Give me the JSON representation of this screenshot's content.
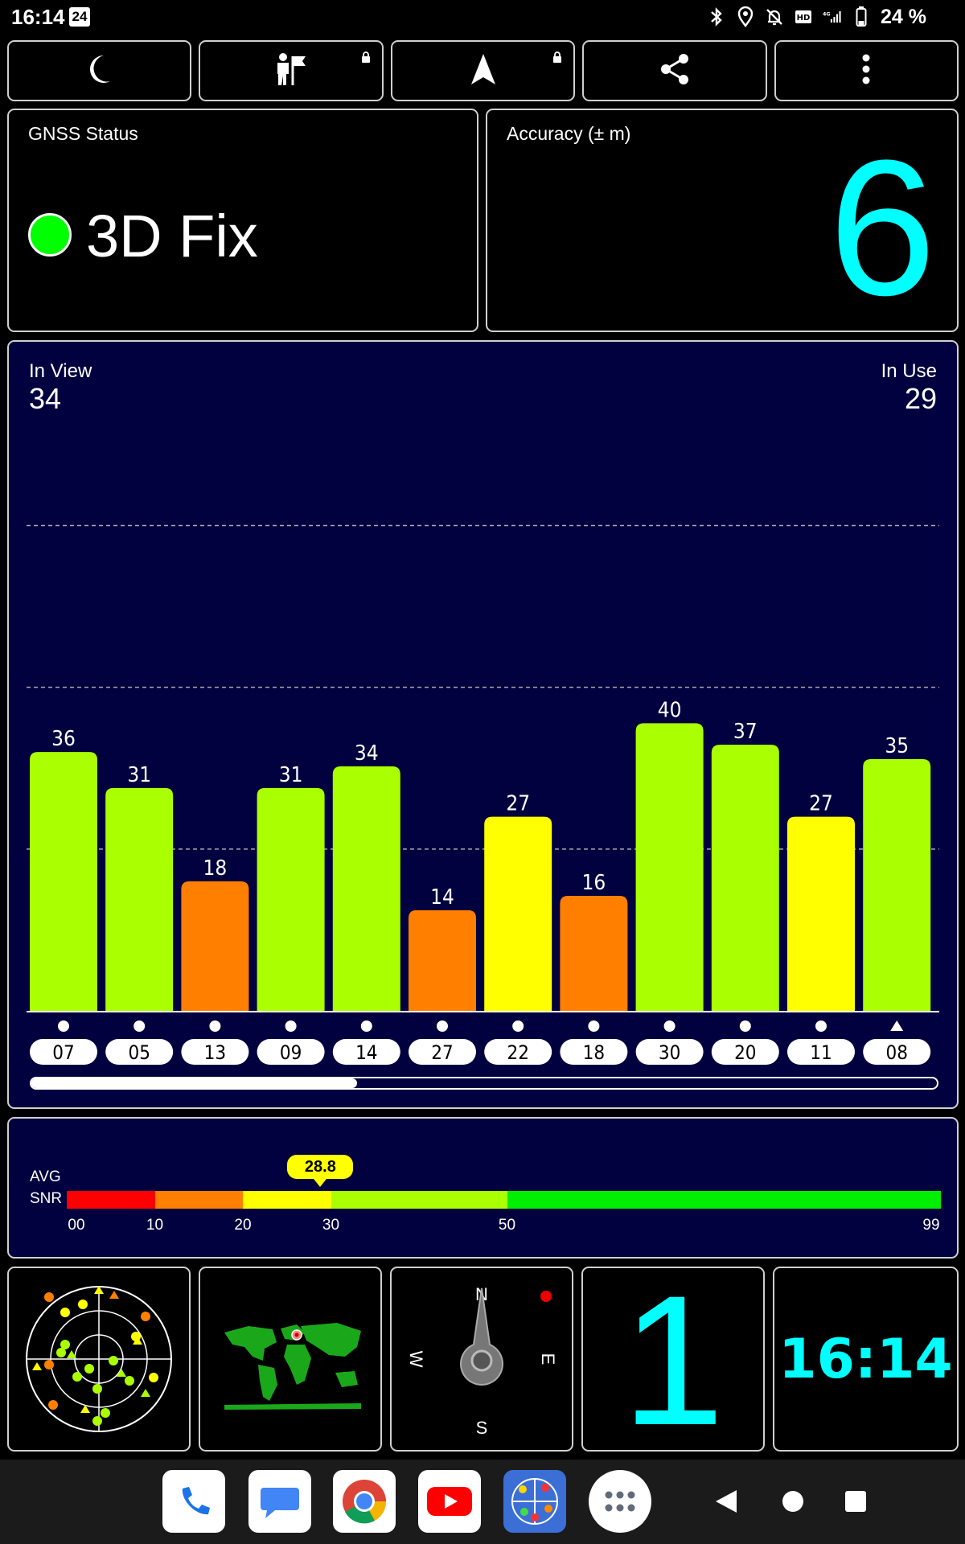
{
  "status_bar": {
    "time": "16:14",
    "date_badge": "24",
    "battery": "24 %",
    "icons": [
      "bluetooth-icon",
      "location-icon",
      "do-not-disturb-icon",
      "hd-icon",
      "4g-signal-icon",
      "battery-icon"
    ]
  },
  "toolbar": {
    "buttons": [
      "night-mode-icon",
      "map-marker-person-icon",
      "navigation-arrow-icon",
      "share-icon",
      "more-vert-icon"
    ]
  },
  "gnss_status": {
    "title": "GNSS Status",
    "value": "3D Fix",
    "indicator_color": "#00ff00"
  },
  "accuracy": {
    "title": "Accuracy (± m)",
    "value": "6"
  },
  "satellites": {
    "in_view_label": "In View",
    "in_view": "34",
    "in_use_label": "In Use",
    "in_use": "29"
  },
  "chart_data": {
    "type": "bar",
    "categories": [
      "07",
      "05",
      "13",
      "09",
      "14",
      "27",
      "22",
      "18",
      "30",
      "20",
      "11",
      "08"
    ],
    "values": [
      36,
      31,
      18,
      31,
      34,
      14,
      27,
      16,
      40,
      37,
      27,
      35
    ],
    "markers": [
      "dot",
      "dot",
      "dot",
      "dot",
      "dot",
      "dot",
      "dot",
      "dot",
      "dot",
      "dot",
      "dot",
      "triangle"
    ],
    "ylim": [
      0,
      68
    ],
    "grid_lines": [
      22.5,
      45,
      67.5
    ],
    "colors": {
      "low": "#ff7f00",
      "mid": "#ffff00",
      "high": "#aaff00"
    },
    "scroll_fraction": 0.36
  },
  "snr": {
    "label_top": "AVG",
    "label_bottom": "SNR",
    "average": "28.8",
    "average_value": 28.8,
    "ticks": [
      "00",
      "10",
      "20",
      "30",
      "50",
      "99"
    ],
    "segments": [
      {
        "from": 0,
        "to": 10,
        "color": "#ff0000"
      },
      {
        "from": 10,
        "to": 20,
        "color": "#ff7f00"
      },
      {
        "from": 20,
        "to": 30,
        "color": "#ffff00"
      },
      {
        "from": 30,
        "to": 50,
        "color": "#aaff00"
      },
      {
        "from": 50,
        "to": 99,
        "color": "#00ee00"
      }
    ]
  },
  "tiles": {
    "satellites_in_use_count": "1",
    "clock": "16:14",
    "compass": {
      "n": "N",
      "e": "E",
      "s": "S",
      "w": "W"
    }
  },
  "navbar": {
    "apps": [
      "phone-app-icon",
      "messages-app-icon",
      "chrome-app-icon",
      "youtube-app-icon",
      "gps-test-app-icon",
      "app-drawer-icon"
    ],
    "buttons": [
      "back-button",
      "home-button",
      "recents-button"
    ]
  }
}
